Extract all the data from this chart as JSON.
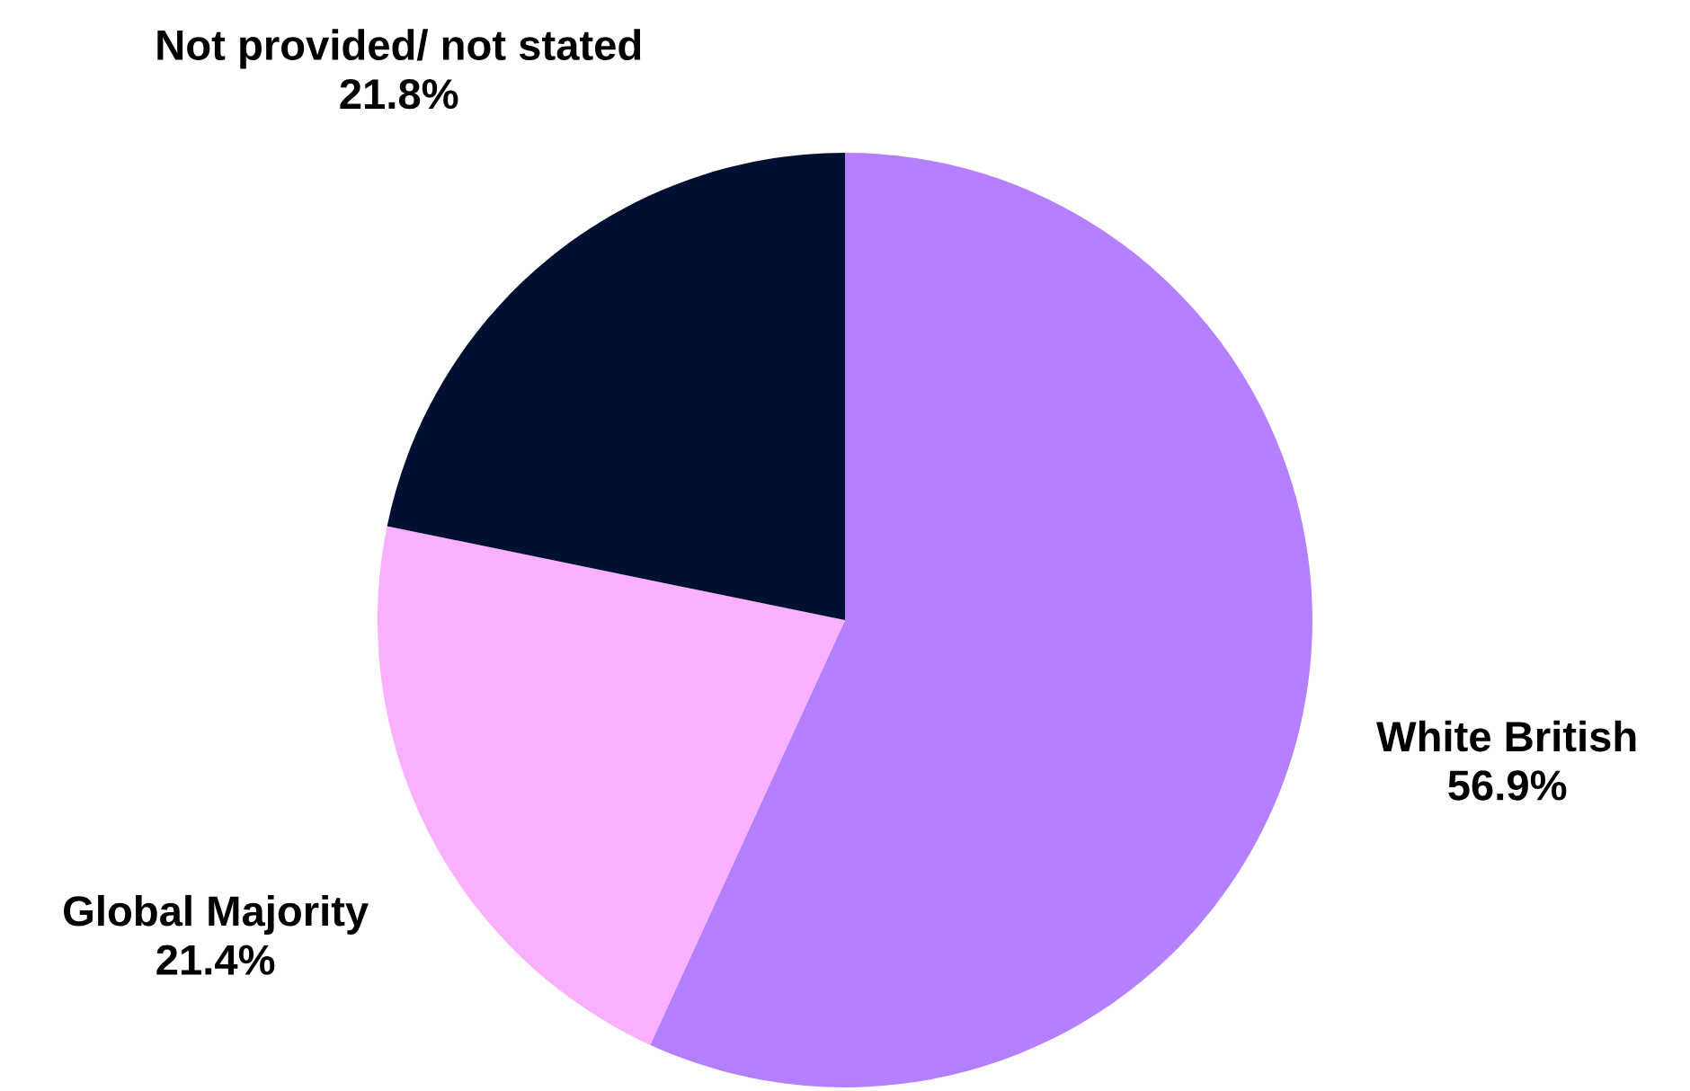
{
  "chart_data": {
    "type": "pie",
    "categories": [
      "White British",
      "Global Majority",
      "Not provided/ not stated"
    ],
    "values": [
      56.9,
      21.4,
      21.8
    ],
    "value_labels": [
      "56.9%",
      "21.4%",
      "21.8%"
    ],
    "colors": [
      "#b580ff",
      "#f9b0ff",
      "#001030"
    ],
    "legend": false
  }
}
